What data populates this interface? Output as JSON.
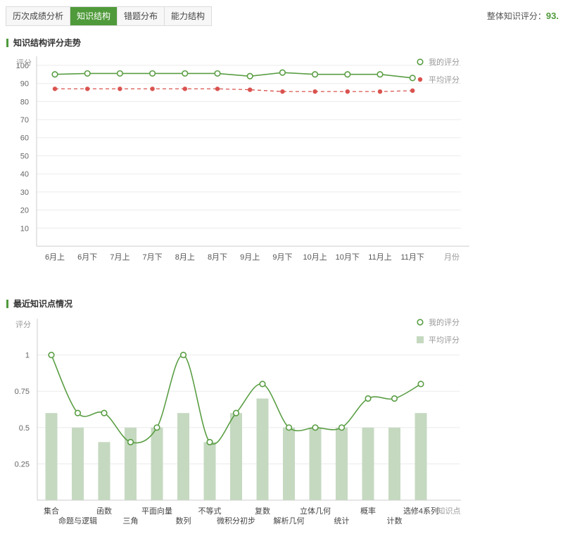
{
  "tabs": [
    {
      "label": "历次成绩分析",
      "active": false
    },
    {
      "label": "知识结构",
      "active": true
    },
    {
      "label": "错题分布",
      "active": false
    },
    {
      "label": "能力结构",
      "active": false
    }
  ],
  "overall": {
    "label": "整体知识评分：",
    "value": "93."
  },
  "section1_title": "知识结构评分走势",
  "section2_title": "最近知识点情况",
  "colors": {
    "accent": "#4f9a3a",
    "my_line": "#5a9e44",
    "avg_line": "#d9534f",
    "bar": "#c5d9c0"
  },
  "chart_data": [
    {
      "type": "line",
      "ylabel": "评分",
      "xlabel": "月份",
      "ylim": [
        0,
        105
      ],
      "yticks": [
        10,
        20,
        30,
        40,
        50,
        60,
        70,
        80,
        90,
        100
      ],
      "categories": [
        "6月上",
        "6月下",
        "7月上",
        "7月下",
        "8月上",
        "8月下",
        "9月上",
        "9月下",
        "10月上",
        "10月下",
        "11月上",
        "11月下"
      ],
      "series": [
        {
          "name": "我的评分",
          "values": [
            95,
            95.5,
            95.5,
            95.5,
            95.5,
            95.5,
            94,
            96,
            95,
            95,
            95,
            93
          ]
        },
        {
          "name": "平均评分",
          "values": [
            87,
            87,
            87,
            87,
            87,
            87,
            86.5,
            85.5,
            85.5,
            85.5,
            85.5,
            86
          ]
        }
      ],
      "legend": "top-right"
    },
    {
      "type": "bar",
      "ylabel": "评分",
      "xlabel": "知识点",
      "ylim": [
        0,
        1.25
      ],
      "yticks": [
        0.25,
        0.5,
        0.75,
        1
      ],
      "ytick_labels": [
        "0.25",
        "0.5",
        "0.75",
        "1"
      ],
      "categories": [
        "集合",
        "命题与逻辑",
        "函数",
        "三角",
        "平面向量",
        "数列",
        "不等式",
        "微积分初步",
        "复数",
        "解析几何",
        "立体几何",
        "统计",
        "概率",
        "计数",
        "选修4系列"
      ],
      "series": [
        {
          "name": "我的评分",
          "type": "line",
          "values": [
            1,
            0.6,
            0.6,
            0.4,
            0.5,
            1,
            0.4,
            0.6,
            0.8,
            0.5,
            0.5,
            0.5,
            0.7,
            0.7,
            0.8
          ]
        },
        {
          "name": "平均评分",
          "type": "bar",
          "values": [
            0.6,
            0.5,
            0.4,
            0.5,
            0.5,
            0.6,
            0.4,
            0.6,
            0.7,
            0.5,
            0.5,
            0.5,
            0.5,
            0.5,
            0.6
          ]
        }
      ],
      "legend": "top-right"
    }
  ]
}
